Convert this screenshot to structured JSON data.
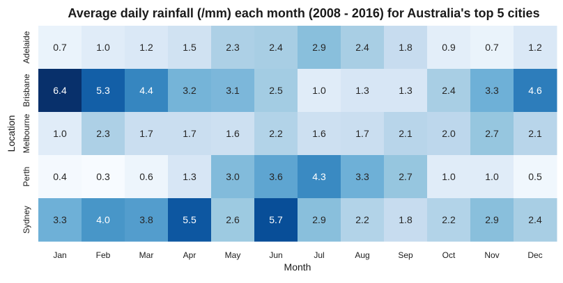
{
  "chart_data": {
    "type": "heatmap",
    "title": "Average daily rainfall (/mm) each month (2008 - 2016) for Australia's top 5 cities",
    "xlabel": "Month",
    "ylabel": "Location",
    "x_categories": [
      "Jan",
      "Feb",
      "Mar",
      "Apr",
      "May",
      "Jun",
      "Jul",
      "Aug",
      "Sep",
      "Oct",
      "Nov",
      "Dec"
    ],
    "y_categories": [
      "Adelaide",
      "Brisbane",
      "Melbourne",
      "Perth",
      "Sydney"
    ],
    "values": [
      [
        0.7,
        1.0,
        1.2,
        1.5,
        2.3,
        2.4,
        2.9,
        2.4,
        1.8,
        0.9,
        0.7,
        1.2
      ],
      [
        6.4,
        5.3,
        4.4,
        3.2,
        3.1,
        2.5,
        1.0,
        1.3,
        1.3,
        2.4,
        3.3,
        4.6
      ],
      [
        1.0,
        2.3,
        1.7,
        1.7,
        1.6,
        2.2,
        1.6,
        1.7,
        2.1,
        2.0,
        2.7,
        2.1
      ],
      [
        0.4,
        0.3,
        0.6,
        1.3,
        3.0,
        3.6,
        4.3,
        3.3,
        2.7,
        1.0,
        1.0,
        0.5
      ],
      [
        3.3,
        4.0,
        3.8,
        5.5,
        2.6,
        5.7,
        2.9,
        2.2,
        1.8,
        2.2,
        2.9,
        2.4
      ]
    ],
    "colormap": "Blues",
    "colorscale": [
      "#f7fbff",
      "#deebf7",
      "#c6dbef",
      "#9ecae1",
      "#6baed6",
      "#4292c6",
      "#2171b5",
      "#08519c",
      "#08306b"
    ],
    "vmin": 0.3,
    "vmax": 6.4,
    "annotated": true,
    "value_format": "0.1f",
    "colorbar": false,
    "grid": false
  }
}
